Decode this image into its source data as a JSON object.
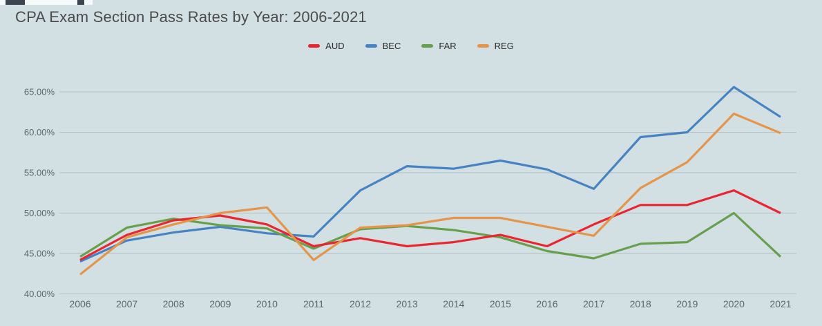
{
  "chart": {
    "title": "CPA Exam Section Pass Rates by Year: 2006-2021"
  },
  "chart_data": {
    "type": "line",
    "title": "CPA Exam Section Pass Rates by Year: 2006-2021",
    "x": [
      2006,
      2007,
      2008,
      2009,
      2010,
      2011,
      2012,
      2013,
      2014,
      2015,
      2016,
      2017,
      2018,
      2019,
      2020,
      2021
    ],
    "series": [
      {
        "name": "AUD",
        "color": "#e8262f",
        "values": [
          44.2,
          47.3,
          49.1,
          49.7,
          48.6,
          45.9,
          46.9,
          45.9,
          46.4,
          47.3,
          45.9,
          48.6,
          51.0,
          51.0,
          52.8,
          50.0
        ]
      },
      {
        "name": "BEC",
        "color": "#4583c2",
        "values": [
          44.0,
          46.6,
          47.6,
          48.3,
          47.5,
          47.1,
          52.8,
          55.8,
          55.5,
          56.5,
          55.4,
          53.0,
          59.4,
          60.0,
          65.6,
          61.9
        ]
      },
      {
        "name": "FAR",
        "color": "#67a04d",
        "values": [
          44.6,
          48.2,
          49.3,
          48.5,
          48.1,
          45.6,
          48.0,
          48.4,
          47.9,
          47.0,
          45.3,
          44.4,
          46.2,
          46.4,
          50.0,
          44.6
        ]
      },
      {
        "name": "REG",
        "color": "#e59549",
        "values": [
          42.4,
          47.0,
          48.6,
          50.0,
          50.7,
          44.2,
          48.2,
          48.5,
          49.4,
          49.4,
          48.3,
          47.2,
          53.1,
          56.3,
          62.3,
          59.9
        ]
      }
    ],
    "ylim": [
      40,
      65
    ],
    "ytick_values": [
      65,
      60,
      55,
      50,
      45,
      40
    ],
    "ytick_labels": [
      "65.00%",
      "60.00%",
      "55.00%",
      "50.00%",
      "45.00%",
      "40.00%"
    ],
    "xtick_labels": [
      "2006",
      "2007",
      "2008",
      "2009",
      "2010",
      "2011",
      "2012",
      "2013",
      "2014",
      "2015",
      "2016",
      "2017",
      "2018",
      "2019",
      "2020",
      "2021"
    ],
    "value_format": "percent",
    "grid": true,
    "legend_position": "top-center"
  },
  "colors": {
    "background": "#d2dfe3",
    "gridline": "#b3bfc2",
    "title_text": "#4b4b4b",
    "axis_text": "#5c676b",
    "legend_text": "#2f2f2f"
  }
}
